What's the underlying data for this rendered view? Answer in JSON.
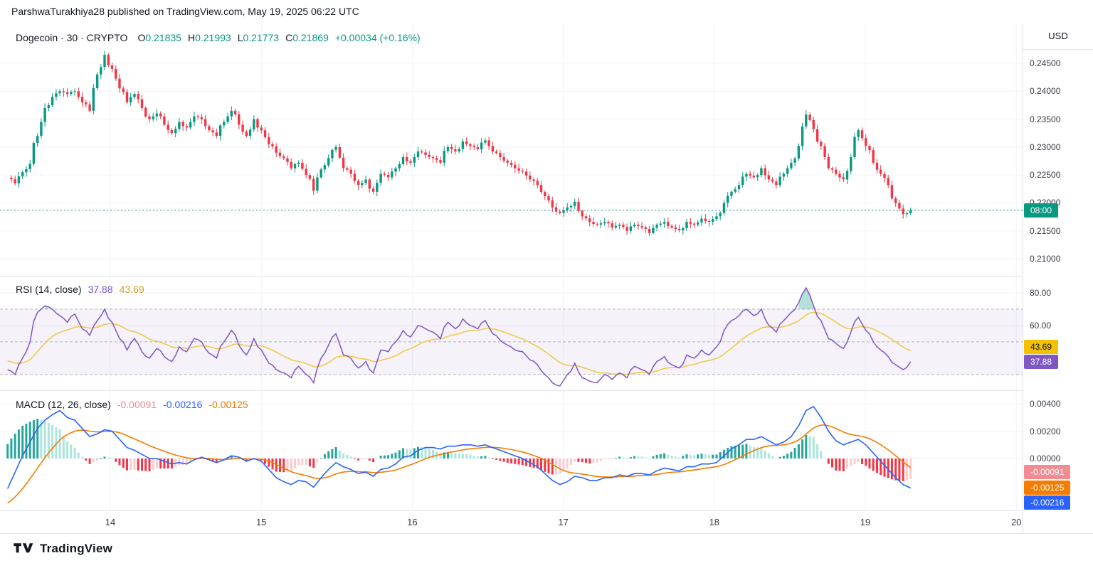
{
  "header": {
    "published_line": "ParshwaTurakhiya28 published on TradingView.com, May 19, 2025 06:22 UTC"
  },
  "legend": {
    "symbol_line": "Dogecoin · 30 · CRYPTO",
    "ohlc": [
      {
        "label": "O",
        "value": "0.21835"
      },
      {
        "label": "H",
        "value": "0.21993"
      },
      {
        "label": "L",
        "value": "0.21773"
      },
      {
        "label": "C",
        "value": "0.21869"
      }
    ],
    "change": "+0.00034 (+0.16%)"
  },
  "price_axis": {
    "currency_label": "USD",
    "ticks": [
      "0.24500",
      "0.24000",
      "0.23500",
      "0.23000",
      "0.22500",
      "0.22000",
      "0.21500",
      "0.21000"
    ],
    "last_badge": "08:00"
  },
  "rsi": {
    "title": "RSI (14, close)",
    "value_main": "37.88",
    "value_ma": "43.69",
    "axis_ticks": [
      "80.00",
      "60.00"
    ],
    "badge_ma": "43.69",
    "badge_main": "37.88"
  },
  "macd": {
    "title": "MACD (12, 26, close)",
    "value_hist": "-0.00091",
    "value_macd": "-0.00216",
    "value_signal": "-0.00125",
    "axis_ticks": [
      "0.00400",
      "0.00200",
      "0.00000"
    ],
    "badge_hist": "-0.00091",
    "badge_signal": "-0.00125",
    "badge_macd": "-0.00216"
  },
  "time_axis": {
    "labels": [
      "14",
      "15",
      "16",
      "17",
      "18",
      "19",
      "20"
    ]
  },
  "footer": {
    "brand": "TradingView"
  },
  "colors": {
    "up": "#089981",
    "down": "#F23645",
    "rsi_line": "#7E57C2",
    "rsi_ma": "#F2C94C",
    "macd_line": "#2962FF",
    "signal_line": "#F57C00",
    "hist_pos": "#26A69A",
    "hist_pos_weak": "#ACE5DC",
    "hist_neg": "#F23645",
    "hist_neg_weak": "#FCCBCD",
    "grid": "#F0F3FA",
    "separator": "#E0E3EB"
  },
  "chart_data": {
    "type": "candlestick",
    "symbol": "Dogecoin",
    "interval": "30",
    "exchange": "CRYPTO",
    "t_start": 13.32,
    "t_end": 19.3,
    "time_days": [
      14,
      15,
      16,
      17,
      18,
      19,
      20
    ],
    "price": {
      "type": "candlestick",
      "ylim": [
        0.20695,
        0.25213
      ],
      "tick_values": [
        0.245,
        0.24,
        0.235,
        0.23,
        0.225,
        0.22,
        0.215,
        0.21
      ],
      "last": 0.21869,
      "open_last": 0.21835,
      "high_last": 0.21993,
      "low_last": 0.21773,
      "closes": [
        0.2245,
        0.2235,
        0.2255,
        0.227,
        0.232,
        0.237,
        0.239,
        0.24,
        0.2395,
        0.24,
        0.238,
        0.2365,
        0.243,
        0.2465,
        0.244,
        0.2405,
        0.238,
        0.2395,
        0.237,
        0.235,
        0.236,
        0.234,
        0.2325,
        0.2345,
        0.2335,
        0.2355,
        0.235,
        0.233,
        0.232,
        0.2345,
        0.2365,
        0.234,
        0.232,
        0.235,
        0.233,
        0.2305,
        0.229,
        0.228,
        0.2262,
        0.2272,
        0.225,
        0.2222,
        0.226,
        0.228,
        0.23,
        0.2262,
        0.2252,
        0.2232,
        0.2242,
        0.222,
        0.2252,
        0.2246,
        0.2262,
        0.2282,
        0.2272,
        0.2292,
        0.2286,
        0.228,
        0.2272,
        0.23,
        0.2292,
        0.231,
        0.2302,
        0.2296,
        0.2312,
        0.2292,
        0.2282,
        0.2272,
        0.2262,
        0.2256,
        0.2242,
        0.2232,
        0.2212,
        0.2192,
        0.2182,
        0.2192,
        0.2202,
        0.2176,
        0.2166,
        0.2161,
        0.2166,
        0.2156,
        0.2161,
        0.215,
        0.2161,
        0.2156,
        0.2146,
        0.2161,
        0.2166,
        0.2156,
        0.2151,
        0.2166,
        0.2161,
        0.2172,
        0.2166,
        0.2176,
        0.22,
        0.222,
        0.2232,
        0.2252,
        0.2246,
        0.2262,
        0.2242,
        0.2232,
        0.2252,
        0.2272,
        0.2302,
        0.2358,
        0.2332,
        0.2302,
        0.2262,
        0.2252,
        0.2242,
        0.2282,
        0.233,
        0.2302,
        0.2272,
        0.2252,
        0.2232,
        0.22,
        0.218,
        0.2187
      ]
    },
    "rsi": {
      "type": "line",
      "ylim": [
        20.4,
        90.4
      ],
      "tick_values": [
        80,
        60
      ],
      "levels": [
        70,
        50,
        30
      ],
      "last": 37.88,
      "ma_last": 43.69,
      "values": [
        33,
        30,
        40,
        50,
        68,
        72,
        70,
        66,
        62,
        67,
        58,
        54,
        63,
        70,
        62,
        52,
        45,
        52,
        44,
        40,
        46,
        41,
        38,
        47,
        44,
        52,
        50,
        43,
        40,
        50,
        57,
        48,
        42,
        52,
        45,
        37,
        33,
        31,
        28,
        35,
        30,
        25,
        40,
        48,
        55,
        42,
        40,
        34,
        38,
        31,
        45,
        44,
        50,
        57,
        53,
        60,
        58,
        56,
        52,
        62,
        58,
        64,
        60,
        58,
        63,
        55,
        51,
        48,
        45,
        44,
        39,
        36,
        30,
        25,
        23,
        30,
        37,
        28,
        26,
        25,
        30,
        27,
        31,
        28,
        35,
        33,
        30,
        38,
        41,
        36,
        34,
        42,
        40,
        45,
        42,
        47,
        57,
        63,
        66,
        70,
        66,
        70,
        60,
        56,
        63,
        68,
        74,
        83,
        72,
        63,
        52,
        49,
        46,
        56,
        65,
        57,
        50,
        45,
        41,
        36,
        33,
        37.88
      ]
    },
    "macd": {
      "type": "line+histogram",
      "ylim": [
        -0.003792,
        0.004987
      ],
      "tick_values": [
        0.004,
        0.002,
        0
      ],
      "macd_last": -0.00216,
      "signal_last": -0.00125,
      "hist_last": -0.00091,
      "values": [
        -0.0022,
        -0.001,
        0.0002,
        0.0012,
        0.0022,
        0.0028,
        0.0032,
        0.0035,
        0.003,
        0.0028,
        0.0022,
        0.0016,
        0.0018,
        0.0021,
        0.002,
        0.0014,
        0.0008,
        0.0006,
        0.0003,
        0.0,
        0.0,
        -0.0002,
        -0.0004,
        -0.0003,
        -0.0004,
        -0.0001,
        0.0001,
        -0.0001,
        -0.0003,
        -0.0001,
        0.0002,
        0.0001,
        -0.0002,
        0.0,
        -0.0002,
        -0.0008,
        -0.0014,
        -0.0017,
        -0.0019,
        -0.0016,
        -0.0017,
        -0.0021,
        -0.0014,
        -0.0008,
        -0.0003,
        -0.0006,
        -0.0008,
        -0.0011,
        -0.001,
        -0.0013,
        -0.0008,
        -0.0007,
        -0.0004,
        0.0001,
        0.0002,
        0.0006,
        0.0008,
        0.0008,
        0.0007,
        0.0009,
        0.0009,
        0.001,
        0.001,
        0.0009,
        0.001,
        0.0008,
        0.0006,
        0.0004,
        0.0002,
        0.0,
        -0.0003,
        -0.0006,
        -0.0011,
        -0.0016,
        -0.0019,
        -0.0017,
        -0.0013,
        -0.0014,
        -0.0016,
        -0.0016,
        -0.0014,
        -0.0014,
        -0.0012,
        -0.0013,
        -0.0011,
        -0.0011,
        -0.0012,
        -0.0009,
        -0.0007,
        -0.0008,
        -0.0009,
        -0.0006,
        -0.0006,
        -0.0004,
        -0.0004,
        -0.0003,
        0.0002,
        0.0007,
        0.001,
        0.0014,
        0.0014,
        0.0016,
        0.0013,
        0.001,
        0.0012,
        0.0016,
        0.0024,
        0.0035,
        0.0038,
        0.003,
        0.002,
        0.0013,
        0.001,
        0.0012,
        0.0014,
        0.001,
        0.0004,
        -0.0002,
        -0.0008,
        -0.0014,
        -0.0019,
        -0.00216
      ]
    }
  }
}
